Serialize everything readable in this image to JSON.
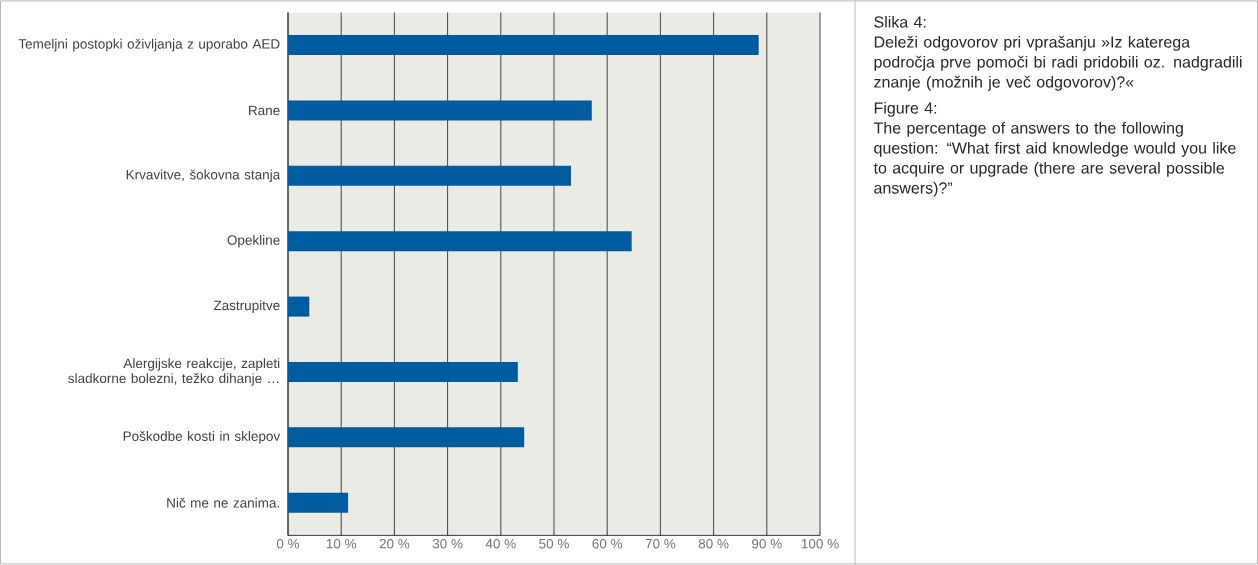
{
  "chart_data": {
    "type": "bar",
    "orientation": "horizontal",
    "categories": [
      "Temeljni postopki oživljanja z uporabo AED",
      "Rane",
      "Krvavitve, šokovna stanja",
      "Opekline",
      "Zastrupitve",
      "Alergijske reakcije, zapleti sladkorne bolezni, težko dihanje …",
      "Poškodbe kosti in sklepov",
      "Nič me ne zanima."
    ],
    "values": [
      88.5,
      57.1,
      53.2,
      64.6,
      4.0,
      43.2,
      44.4,
      11.3
    ],
    "color": "#005b9f",
    "xlim": [
      0,
      100
    ],
    "xticks": [
      {
        "value": 0,
        "label": "0 %"
      },
      {
        "value": 10,
        "label": "10 %"
      },
      {
        "value": 20,
        "label": "20 %"
      },
      {
        "value": 30,
        "label": "30 %"
      },
      {
        "value": 40,
        "label": "40 %"
      },
      {
        "value": 50,
        "label": "50 %"
      },
      {
        "value": 60,
        "label": "60 %"
      },
      {
        "value": 70,
        "label": "70 %"
      },
      {
        "value": 80,
        "label": "80 %"
      },
      {
        "value": 90,
        "label": "90 %"
      },
      {
        "value": 100,
        "label": "100 %"
      }
    ],
    "grid": "x",
    "annotations": [
      "Slika 4:",
      "Deleži odgovorov pri vprašanju »Iz katerega področja prve pomoči bi radi pridobili oz. nadgradili znanje (možnih je več odgovorov)?«",
      "Figure 4:",
      "The percentage of answers to the following question: “What first aid knowledge would you like to acquire or upgrade (there are several possible answers)?”"
    ]
  }
}
